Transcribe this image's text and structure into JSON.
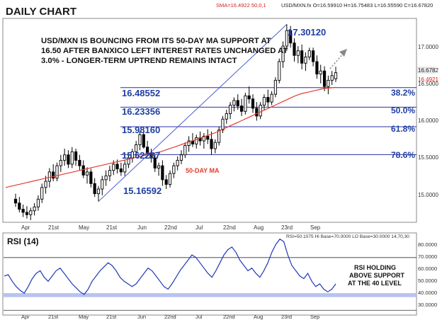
{
  "header": {
    "title": "DAILY CHART",
    "sma_readout": "SMA=16.4922  50,0,1",
    "ohlc_readout": "USD/MXN.fx O=16.59910 H=16.75483 L=16.55590 C=16.67820"
  },
  "annotation": {
    "lines": [
      "USD/MXN IS BOUNCING FROM ITS 50-DAY MA SUPPORT AT",
      "16.50 AFTER BANXICO LEFT INTEREST RATES UNCHANGED AT",
      "3.0% - LONGER-TERM UPTREND REMAINS INTACT"
    ]
  },
  "price_labels": {
    "high": "17.30120",
    "low": "15.16592",
    "last": "16.6782",
    "sma_last": "16.4921",
    "ma_label": "50-DAY MA"
  },
  "fib_levels": [
    {
      "value": 16.48552,
      "label": "16.48552",
      "pct": "38.2%"
    },
    {
      "value": 16.23356,
      "label": "16.23356",
      "pct": "50.0%"
    },
    {
      "value": 15.9816,
      "label": "15.98160",
      "pct": "61.8%"
    },
    {
      "value": 15.62287,
      "label": "15.62287",
      "pct": "78.6%"
    }
  ],
  "price_axis": {
    "ticks": [
      "17.0000",
      "16.5000",
      "16.0000",
      "15.5000",
      "15.0000"
    ]
  },
  "x_axis": {
    "labels": [
      "Apr",
      "21st",
      "May",
      "21st",
      "Jun",
      "22nd",
      "Jul",
      "22nd",
      "Aug",
      "23rd",
      "Sep"
    ]
  },
  "rsi": {
    "title": "RSI (14)",
    "readout": "RSI=50.1075  Hi Base=70.0000  LO Base=30.0000   14,70,30",
    "axis_ticks": [
      "80.0000",
      "70.0000",
      "60.0000",
      "50.0000",
      "40.0000",
      "30.0000"
    ],
    "note_lines": [
      "RSI HOLDING",
      "ABOVE SUPPORT",
      "AT THE 40 LEVEL"
    ]
  },
  "colors": {
    "candle": "#000000",
    "fib_line": "#2b2fa0",
    "fib_text": "#1f3fa3",
    "ma_line": "#e53b2c",
    "trend_line": "#4a5ed0",
    "rsi_line": "#2238b8",
    "rsi_band": "#b8c2f2",
    "arrow": "#888888"
  },
  "chart_data": {
    "type": "candlestick",
    "title": "DAILY CHART",
    "symbol": "USD/MXN",
    "ylim": [
      14.77,
      17.34
    ],
    "yticks": [
      15.0,
      15.5,
      16.0,
      16.5,
      17.0
    ],
    "moving_average": {
      "name": "50-DAY MA",
      "period": 50,
      "last": 16.4921
    },
    "candles_ohlc": [
      [
        15.05,
        15.12,
        14.95,
        15.0
      ],
      [
        15.0,
        15.08,
        14.88,
        14.92
      ],
      [
        14.92,
        14.98,
        14.82,
        14.88
      ],
      [
        14.88,
        14.96,
        14.8,
        14.85
      ],
      [
        14.85,
        14.94,
        14.78,
        14.9
      ],
      [
        14.9,
        15.0,
        14.84,
        14.95
      ],
      [
        14.95,
        15.1,
        14.9,
        15.05
      ],
      [
        15.05,
        15.25,
        15.0,
        15.2
      ],
      [
        15.2,
        15.35,
        15.12,
        15.28
      ],
      [
        15.28,
        15.45,
        15.2,
        15.4
      ],
      [
        15.4,
        15.5,
        15.28,
        15.32
      ],
      [
        15.32,
        15.52,
        15.28,
        15.48
      ],
      [
        15.48,
        15.62,
        15.4,
        15.55
      ],
      [
        15.55,
        15.7,
        15.48,
        15.62
      ],
      [
        15.62,
        15.68,
        15.45,
        15.5
      ],
      [
        15.5,
        15.72,
        15.45,
        15.66
      ],
      [
        15.66,
        15.7,
        15.48,
        15.55
      ],
      [
        15.55,
        15.62,
        15.42,
        15.48
      ],
      [
        15.48,
        15.55,
        15.32,
        15.36
      ],
      [
        15.36,
        15.46,
        15.25,
        15.4
      ],
      [
        15.4,
        15.44,
        15.2,
        15.25
      ],
      [
        15.25,
        15.32,
        15.08,
        15.12
      ],
      [
        15.12,
        15.22,
        15.02,
        15.18
      ],
      [
        15.18,
        15.35,
        15.1,
        15.3
      ],
      [
        15.3,
        15.42,
        15.22,
        15.35
      ],
      [
        15.35,
        15.48,
        15.28,
        15.42
      ],
      [
        15.42,
        15.55,
        15.36,
        15.5
      ],
      [
        15.5,
        15.56,
        15.38,
        15.44
      ],
      [
        15.44,
        15.52,
        15.35,
        15.4
      ],
      [
        15.4,
        15.55,
        15.35,
        15.5
      ],
      [
        15.5,
        15.62,
        15.45,
        15.58
      ],
      [
        15.58,
        15.7,
        15.52,
        15.66
      ],
      [
        15.66,
        15.8,
        15.6,
        15.75
      ],
      [
        15.75,
        15.92,
        15.68,
        15.88
      ],
      [
        15.88,
        15.92,
        15.7,
        15.72
      ],
      [
        15.72,
        15.8,
        15.6,
        15.64
      ],
      [
        15.64,
        15.7,
        15.52,
        15.58
      ],
      [
        15.58,
        15.62,
        15.4,
        15.45
      ],
      [
        15.45,
        15.52,
        15.35,
        15.48
      ],
      [
        15.48,
        15.55,
        15.22,
        15.3
      ],
      [
        15.3,
        15.36,
        15.18,
        15.24
      ],
      [
        15.24,
        15.42,
        15.2,
        15.38
      ],
      [
        15.38,
        15.52,
        15.32,
        15.48
      ],
      [
        15.48,
        15.6,
        15.42,
        15.55
      ],
      [
        15.55,
        15.68,
        15.5,
        15.62
      ],
      [
        15.62,
        15.78,
        15.58,
        15.74
      ],
      [
        15.74,
        15.86,
        15.66,
        15.8
      ],
      [
        15.8,
        15.9,
        15.72,
        15.76
      ],
      [
        15.76,
        15.88,
        15.7,
        15.84
      ],
      [
        15.84,
        15.92,
        15.74,
        15.8
      ],
      [
        15.8,
        15.9,
        15.7,
        15.86
      ],
      [
        15.86,
        15.95,
        15.76,
        15.82
      ],
      [
        15.82,
        15.92,
        15.62,
        15.7
      ],
      [
        15.7,
        15.82,
        15.64,
        15.78
      ],
      [
        15.78,
        15.98,
        15.74,
        15.94
      ],
      [
        15.94,
        16.12,
        15.9,
        16.08
      ],
      [
        16.08,
        16.2,
        16.02,
        16.15
      ],
      [
        16.15,
        16.3,
        16.08,
        16.26
      ],
      [
        16.26,
        16.36,
        16.18,
        16.32
      ],
      [
        16.32,
        16.4,
        16.2,
        16.25
      ],
      [
        16.25,
        16.34,
        16.12,
        16.18
      ],
      [
        16.18,
        16.42,
        16.14,
        16.38
      ],
      [
        16.38,
        16.5,
        16.28,
        16.34
      ],
      [
        16.34,
        16.4,
        16.16,
        16.22
      ],
      [
        16.22,
        16.3,
        16.06,
        16.12
      ],
      [
        16.12,
        16.3,
        16.08,
        16.26
      ],
      [
        16.26,
        16.4,
        16.2,
        16.36
      ],
      [
        16.36,
        16.46,
        16.24,
        16.3
      ],
      [
        16.3,
        16.44,
        16.26,
        16.4
      ],
      [
        16.4,
        16.62,
        16.36,
        16.58
      ],
      [
        16.58,
        16.86,
        16.54,
        16.82
      ],
      [
        16.82,
        17.08,
        16.74,
        17.02
      ],
      [
        17.02,
        17.3,
        16.96,
        17.22
      ],
      [
        17.22,
        17.28,
        17.0,
        17.06
      ],
      [
        17.06,
        17.12,
        16.82,
        16.9
      ],
      [
        16.9,
        17.02,
        16.8,
        16.96
      ],
      [
        16.96,
        17.04,
        16.72,
        16.8
      ],
      [
        16.8,
        16.94,
        16.7,
        16.88
      ],
      [
        16.88,
        17.0,
        16.84,
        16.96
      ],
      [
        16.96,
        17.0,
        16.76,
        16.82
      ],
      [
        16.82,
        16.9,
        16.6,
        16.66
      ],
      [
        16.66,
        16.78,
        16.54,
        16.7
      ],
      [
        16.7,
        16.76,
        16.44,
        16.5
      ],
      [
        16.5,
        16.64,
        16.4,
        16.58
      ],
      [
        16.58,
        16.7,
        16.52,
        16.64
      ],
      [
        16.599,
        16.755,
        16.556,
        16.678
      ]
    ],
    "moving_average_values": [
      15.2,
      15.22,
      15.24,
      15.26,
      15.28,
      15.3,
      15.32,
      15.34,
      15.36,
      15.38,
      15.4,
      15.42,
      15.44,
      15.46,
      15.48,
      15.5,
      15.52,
      15.54,
      15.56,
      15.58,
      15.6,
      15.62,
      15.64,
      15.66,
      15.69,
      15.72,
      15.75,
      15.78,
      15.81,
      15.84,
      15.87,
      15.9,
      15.94,
      15.98,
      16.02,
      16.06,
      16.1,
      16.14,
      16.18,
      16.22,
      16.26,
      16.3,
      16.34,
      16.38,
      16.41,
      16.43,
      16.45,
      16.47,
      16.48,
      16.49
    ],
    "rsi_values": [
      56,
      57,
      52,
      48,
      45,
      43,
      48,
      54,
      58,
      60,
      55,
      52,
      56,
      60,
      62,
      58,
      54,
      50,
      47,
      44,
      42,
      46,
      52,
      56,
      60,
      63,
      66,
      64,
      60,
      55,
      52,
      50,
      48,
      50,
      54,
      58,
      62,
      60,
      56,
      52,
      48,
      46,
      50,
      55,
      60,
      64,
      68,
      72,
      70,
      66,
      62,
      58,
      55,
      60,
      66,
      72,
      76,
      78,
      74,
      68,
      64,
      60,
      62,
      58,
      55,
      60,
      66,
      74,
      80,
      84,
      82,
      72,
      64,
      60,
      56,
      54,
      58,
      52,
      48,
      50,
      46,
      44,
      46,
      50
    ],
    "rsi_ylim": [
      28,
      86
    ],
    "rsi_support": [
      40,
      43
    ],
    "rsi_levels": {
      "hi": 70,
      "lo": 30
    }
  }
}
